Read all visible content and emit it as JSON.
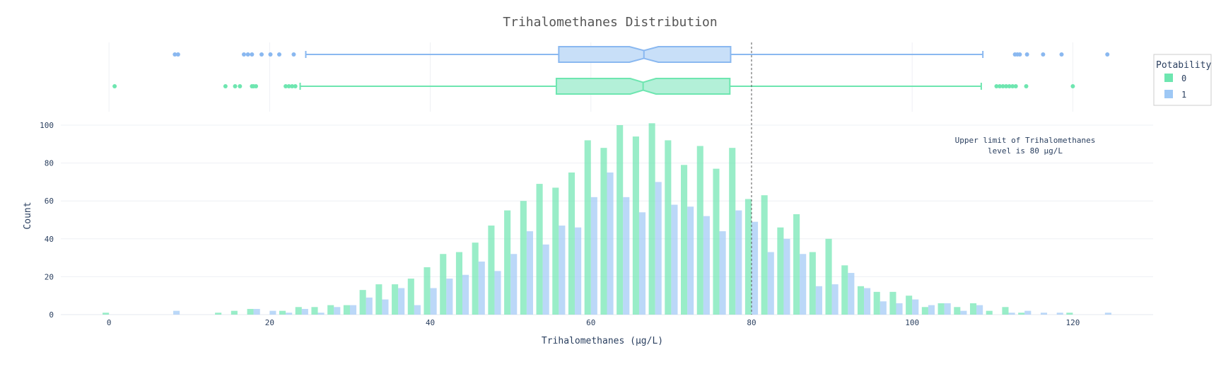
{
  "chart_data": {
    "type": "bar",
    "title": "Trihalomethanes Distribution",
    "xlabel": "Trihalomethanes (µg/L)",
    "ylabel": "Count",
    "xlim": [
      -6,
      130
    ],
    "ylim": [
      0,
      100
    ],
    "x_ticks": [
      0,
      20,
      40,
      60,
      80,
      100,
      120
    ],
    "y_ticks": [
      0,
      20,
      40,
      60,
      80,
      100
    ],
    "grid": true,
    "bin_width": 2,
    "x": [
      0,
      2,
      4,
      6,
      8,
      10,
      12,
      14,
      16,
      18,
      20,
      22,
      24,
      26,
      28,
      30,
      32,
      34,
      36,
      38,
      40,
      42,
      44,
      46,
      48,
      50,
      52,
      54,
      56,
      58,
      60,
      62,
      64,
      66,
      68,
      70,
      72,
      74,
      76,
      78,
      80,
      82,
      84,
      86,
      88,
      90,
      92,
      94,
      96,
      98,
      100,
      102,
      104,
      106,
      108,
      110,
      112,
      114,
      116,
      118,
      120,
      122,
      124
    ],
    "series": [
      {
        "name": "0",
        "color": "#6ee6b0",
        "values": [
          1,
          0,
          0,
          0,
          0,
          0,
          0,
          1,
          2,
          3,
          0,
          2,
          4,
          4,
          5,
          5,
          13,
          16,
          16,
          19,
          25,
          32,
          33,
          38,
          47,
          55,
          60,
          69,
          67,
          75,
          92,
          88,
          100,
          94,
          101,
          92,
          79,
          89,
          77,
          88,
          61,
          63,
          46,
          53,
          33,
          40,
          26,
          15,
          12,
          12,
          10,
          4,
          6,
          4,
          6,
          2,
          4,
          1,
          0,
          0,
          1,
          0,
          0
        ]
      },
      {
        "name": "1",
        "color": "#9ec8f5",
        "values": [
          0,
          0,
          0,
          0,
          2,
          0,
          0,
          0,
          0,
          3,
          2,
          1,
          3,
          1,
          4,
          5,
          9,
          8,
          14,
          5,
          14,
          19,
          21,
          28,
          23,
          32,
          44,
          37,
          47,
          46,
          62,
          75,
          62,
          54,
          70,
          58,
          57,
          52,
          44,
          55,
          49,
          33,
          40,
          32,
          15,
          16,
          22,
          14,
          7,
          6,
          8,
          5,
          6,
          2,
          5,
          0,
          1,
          2,
          1,
          1,
          0,
          0,
          1
        ]
      }
    ],
    "reference_line": {
      "x": 80
    },
    "annotation": "Upper limit of Trihalomethanes level is 80 µg/L",
    "annotation_lines": [
      "Upper limit of Trihalomethanes",
      "level is 80 µg/L"
    ],
    "legend": {
      "title": "Potability",
      "position": "top-right",
      "items": [
        "0",
        "1"
      ]
    },
    "box_plots": [
      {
        "name": "1",
        "color": "#8ab8f0",
        "fill": "#c8dff8",
        "q1": 56.0,
        "median": 66.6,
        "q3": 77.4,
        "whisker_low": 24.5,
        "whisker_high": 108.8,
        "notch": [
          64.8,
          68.4
        ],
        "outliers": [
          8.2,
          8.6,
          16.8,
          17.3,
          17.8,
          19.0,
          20.1,
          21.2,
          23.0,
          112.8,
          113.1,
          113.4,
          114.3,
          116.3,
          118.6,
          124.3
        ]
      },
      {
        "name": "0",
        "color": "#6ee6b0",
        "fill": "#b3f0d8",
        "q1": 55.7,
        "median": 66.5,
        "q3": 77.3,
        "whisker_low": 23.8,
        "whisker_high": 108.6,
        "notch": [
          64.9,
          68.1
        ],
        "outliers": [
          0.7,
          14.5,
          15.7,
          16.3,
          17.8,
          18.0,
          18.3,
          22.0,
          22.4,
          22.8,
          23.2,
          110.5,
          110.9,
          111.3,
          111.7,
          112.1,
          112.5,
          112.9,
          114.2,
          120.0
        ]
      }
    ]
  }
}
